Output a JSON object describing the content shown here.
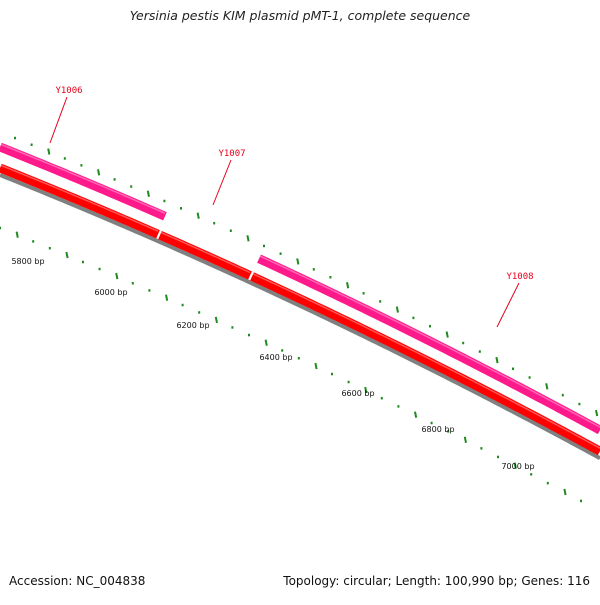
{
  "title": "Yersinia pestis KIM plasmid pMT-1, complete sequence",
  "footer": {
    "accession": "Accession: NC_004838",
    "summary": "Topology: circular; Length: 100,990 bp; Genes: 116"
  },
  "scale_labels": [
    "5800 bp",
    "6000 bp",
    "6200 bp",
    "6400 bp",
    "6600 bp",
    "6800 bp",
    "7000 bp"
  ],
  "genes": [
    {
      "name": "Y1006"
    },
    {
      "name": "Y1007"
    },
    {
      "name": "Y1008"
    }
  ],
  "colors": {
    "gene_label": "#e8001c",
    "cds_track": "#ff1a8c",
    "gene_track": "#ff0000",
    "backbone": "#808080",
    "tick": "#1f8a1f"
  }
}
